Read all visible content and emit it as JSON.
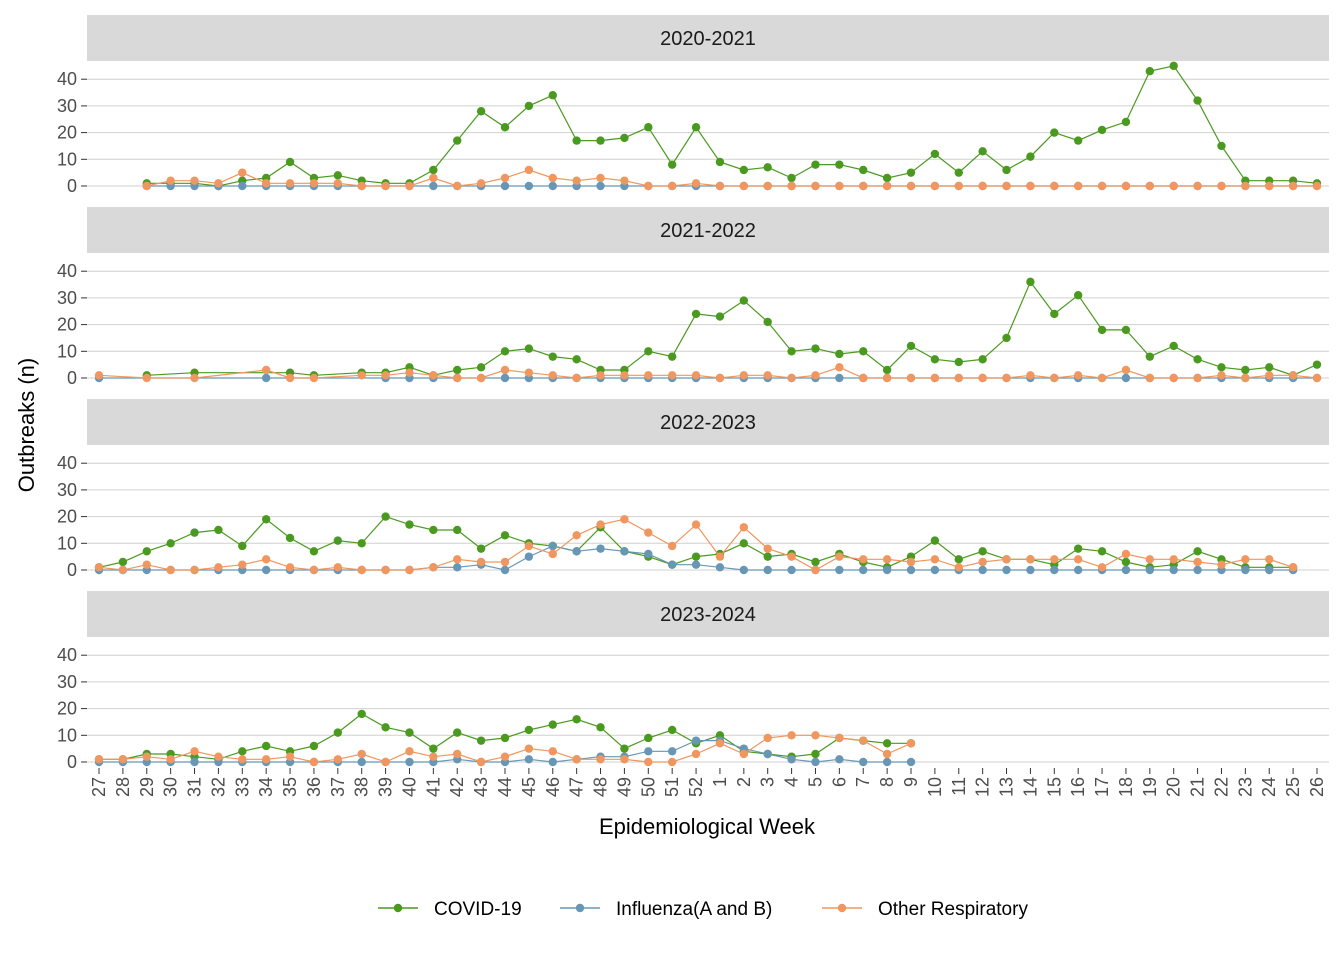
{
  "chart_data": {
    "type": "line",
    "facet_by": "season",
    "xlabel": "Epidemiological Week",
    "ylabel": "Outbreaks (n)",
    "ylim": [
      0,
      45
    ],
    "yticks": [
      0,
      10,
      20,
      30,
      40
    ],
    "grid": true,
    "legend_position": "bottom",
    "weeks": [
      "27",
      "28",
      "29",
      "30",
      "31",
      "32",
      "33",
      "34",
      "35",
      "36",
      "37",
      "38",
      "39",
      "40",
      "41",
      "42",
      "43",
      "44",
      "45",
      "46",
      "47",
      "48",
      "49",
      "50",
      "51",
      "52",
      "1",
      "2",
      "3",
      "4",
      "5",
      "6",
      "7",
      "8",
      "9",
      "10",
      "11",
      "12",
      "13",
      "14",
      "15",
      "16",
      "17",
      "18",
      "19",
      "20",
      "21",
      "22",
      "23",
      "24",
      "25",
      "26"
    ],
    "series_meta": [
      {
        "name": "COVID-19",
        "color": "#4a9a1f"
      },
      {
        "name": "Influenza(A and B)",
        "color": "#6897b5"
      },
      {
        "name": "Other Respiratory",
        "color": "#f0965e"
      }
    ],
    "panels": [
      {
        "title": "2020-2021",
        "series": [
          {
            "name": "COVID-19",
            "values": [
              null,
              null,
              1,
              1,
              1,
              0,
              2,
              3,
              9,
              3,
              4,
              2,
              1,
              1,
              6,
              17,
              28,
              22,
              30,
              34,
              17,
              17,
              18,
              22,
              8,
              22,
              9,
              6,
              7,
              3,
              8,
              8,
              6,
              3,
              5,
              12,
              5,
              13,
              6,
              11,
              20,
              17,
              21,
              24,
              43,
              45,
              32,
              15,
              2,
              2,
              2,
              1
            ]
          },
          {
            "name": "Influenza(A and B)",
            "values": [
              null,
              null,
              0,
              0,
              0,
              0,
              0,
              0,
              0,
              0,
              0,
              0,
              0,
              0,
              0,
              0,
              0,
              0,
              0,
              0,
              0,
              0,
              0,
              0,
              0,
              0,
              0,
              0,
              0,
              0,
              0,
              0,
              0,
              0,
              0,
              0,
              0,
              0,
              0,
              0,
              0,
              0,
              0,
              0,
              0,
              0,
              0,
              0,
              0,
              0,
              0,
              0
            ]
          },
          {
            "name": "Other Respiratory",
            "values": [
              null,
              null,
              0,
              2,
              2,
              1,
              5,
              1,
              1,
              1,
              1,
              0,
              0,
              0,
              3,
              0,
              1,
              3,
              6,
              3,
              2,
              3,
              2,
              0,
              0,
              1,
              0,
              0,
              0,
              0,
              0,
              0,
              0,
              0,
              0,
              0,
              0,
              0,
              0,
              0,
              0,
              0,
              0,
              0,
              0,
              0,
              0,
              0,
              0,
              0,
              0,
              0
            ]
          }
        ]
      },
      {
        "title": "2021-2022",
        "series": [
          {
            "name": "COVID-19",
            "values": [
              null,
              null,
              1,
              null,
              2,
              null,
              null,
              null,
              2,
              1,
              null,
              2,
              2,
              4,
              1,
              3,
              4,
              10,
              11,
              8,
              7,
              3,
              3,
              10,
              8,
              24,
              23,
              29,
              21,
              10,
              11,
              9,
              10,
              3,
              12,
              7,
              6,
              7,
              15,
              36,
              24,
              31,
              18,
              18,
              8,
              12,
              7,
              4,
              3,
              4,
              1,
              5
            ]
          },
          {
            "name": "Influenza(A and B)",
            "values": [
              0,
              null,
              null,
              null,
              null,
              null,
              null,
              0,
              null,
              null,
              null,
              null,
              0,
              0,
              0,
              0,
              0,
              0,
              0,
              0,
              0,
              0,
              0,
              0,
              0,
              0,
              0,
              0,
              0,
              0,
              0,
              0,
              0,
              0,
              0,
              0,
              0,
              0,
              0,
              0,
              0,
              0,
              0,
              0,
              0,
              0,
              0,
              0,
              0,
              0,
              0,
              0
            ]
          },
          {
            "name": "Other Respiratory",
            "values": [
              1,
              null,
              0,
              null,
              0,
              null,
              null,
              3,
              0,
              0,
              null,
              1,
              1,
              2,
              1,
              0,
              0,
              3,
              2,
              1,
              0,
              1,
              1,
              1,
              1,
              1,
              0,
              1,
              1,
              0,
              1,
              4,
              0,
              0,
              0,
              0,
              0,
              0,
              0,
              1,
              0,
              1,
              0,
              3,
              0,
              0,
              0,
              1,
              0,
              1,
              1,
              0
            ]
          }
        ]
      },
      {
        "title": "2022-2023",
        "series": [
          {
            "name": "COVID-19",
            "values": [
              1,
              3,
              7,
              10,
              14,
              15,
              9,
              19,
              12,
              7,
              11,
              10,
              20,
              17,
              15,
              15,
              8,
              13,
              10,
              9,
              7,
              16,
              7,
              5,
              2,
              5,
              6,
              10,
              5,
              6,
              3,
              6,
              3,
              1,
              5,
              11,
              4,
              7,
              4,
              4,
              2,
              8,
              7,
              3,
              1,
              2,
              7,
              4,
              1,
              1,
              1,
              null
            ]
          },
          {
            "name": "Influenza(A and B)",
            "values": [
              0,
              0,
              0,
              0,
              0,
              0,
              0,
              0,
              0,
              0,
              0,
              0,
              0,
              0,
              1,
              1,
              2,
              0,
              5,
              9,
              7,
              8,
              7,
              6,
              2,
              2,
              1,
              0,
              0,
              0,
              0,
              0,
              0,
              0,
              0,
              0,
              0,
              0,
              0,
              0,
              0,
              0,
              0,
              0,
              0,
              0,
              0,
              0,
              0,
              0,
              0,
              null
            ]
          },
          {
            "name": "Other Respiratory",
            "values": [
              1,
              0,
              2,
              0,
              0,
              1,
              2,
              4,
              1,
              0,
              1,
              0,
              0,
              0,
              1,
              4,
              3,
              3,
              9,
              6,
              13,
              17,
              19,
              14,
              9,
              17,
              5,
              16,
              8,
              5,
              0,
              5,
              4,
              4,
              3,
              4,
              1,
              3,
              4,
              4,
              4,
              4,
              1,
              6,
              4,
              4,
              3,
              2,
              4,
              4,
              1,
              null
            ]
          }
        ]
      },
      {
        "title": "2023-2024",
        "series": [
          {
            "name": "COVID-19",
            "values": [
              1,
              1,
              3,
              3,
              2,
              1,
              4,
              6,
              4,
              6,
              11,
              18,
              13,
              11,
              5,
              11,
              8,
              9,
              12,
              14,
              16,
              13,
              5,
              9,
              12,
              7,
              10,
              4,
              3,
              2,
              3,
              9,
              8,
              7,
              7,
              null,
              null,
              null,
              null,
              null,
              null,
              null,
              null,
              null,
              null,
              null,
              null,
              null,
              null,
              null,
              null,
              null
            ]
          },
          {
            "name": "Influenza(A and B)",
            "values": [
              0,
              0,
              0,
              0,
              0,
              0,
              0,
              0,
              0,
              0,
              0,
              0,
              0,
              0,
              0,
              1,
              0,
              0,
              1,
              0,
              1,
              2,
              2,
              4,
              4,
              8,
              8,
              5,
              3,
              1,
              0,
              1,
              0,
              0,
              0,
              null,
              null,
              null,
              null,
              null,
              null,
              null,
              null,
              null,
              null,
              null,
              null,
              null,
              null,
              null,
              null,
              null
            ]
          },
          {
            "name": "Other Respiratory",
            "values": [
              1,
              1,
              2,
              1,
              4,
              2,
              1,
              1,
              2,
              0,
              1,
              3,
              0,
              4,
              2,
              3,
              0,
              2,
              5,
              4,
              1,
              1,
              1,
              0,
              0,
              3,
              7,
              3,
              9,
              10,
              10,
              9,
              8,
              3,
              7,
              null,
              null,
              null,
              null,
              null,
              null,
              null,
              null,
              null,
              null,
              null,
              null,
              null,
              null,
              null,
              null,
              null
            ]
          }
        ]
      }
    ]
  }
}
